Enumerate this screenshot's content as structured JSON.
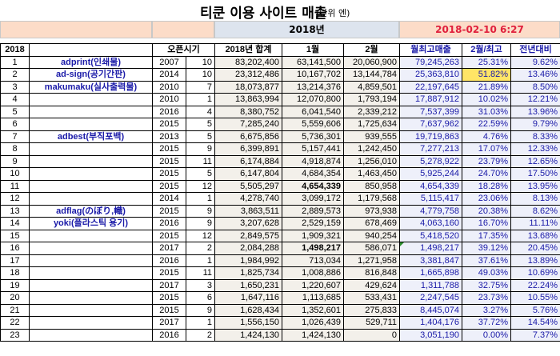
{
  "title": {
    "main": "티쿤 이용 사이트 매출",
    "unit": "(단위 엔)"
  },
  "band": {
    "year": "2018년",
    "date": "2018-02-10 6:27"
  },
  "headers": {
    "index": "2018",
    "site": "",
    "open": "오픈시기",
    "total": "2018년 합계",
    "jan": "1월",
    "feb": "2월",
    "avg": "월최고매출",
    "ratio": "2월/최고",
    "yoy": "전년대비"
  },
  "rows": [
    {
      "no": "1",
      "site": "adprint(인쇄물)",
      "y": "2007",
      "m": "10",
      "total": "83,202,400",
      "jan": "63,141,500",
      "feb": "20,060,900",
      "avg": "79,245,263",
      "ratio": "25.31%",
      "yoy": "9.62%"
    },
    {
      "no": "2",
      "site": "ad-sign(공기간판)",
      "y": "2014",
      "m": "10",
      "total": "23,312,486",
      "jan": "10,167,702",
      "feb": "13,144,784",
      "avg": "25,363,810",
      "ratio": "51.82%",
      "yoy": "13.46%"
    },
    {
      "no": "3",
      "site": "makumaku(실사출력물)",
      "y": "2010",
      "m": "7",
      "total": "18,073,877",
      "jan": "13,214,376",
      "feb": "4,859,501",
      "avg": "22,197,645",
      "ratio": "21.89%",
      "yoy": "8.50%"
    },
    {
      "no": "4",
      "site": "",
      "y": "2010",
      "m": "1",
      "total": "13,863,994",
      "jan": "12,070,800",
      "feb": "1,793,194",
      "avg": "17,887,912",
      "ratio": "10.02%",
      "yoy": "12.21%"
    },
    {
      "no": "5",
      "site": "",
      "y": "2016",
      "m": "4",
      "total": "8,380,752",
      "jan": "6,041,540",
      "feb": "2,339,212",
      "avg": "7,537,399",
      "ratio": "31.03%",
      "yoy": "13.96%"
    },
    {
      "no": "6",
      "site": "",
      "y": "2015",
      "m": "5",
      "total": "7,285,240",
      "jan": "5,559,606",
      "feb": "1,725,634",
      "avg": "7,637,962",
      "ratio": "22.59%",
      "yoy": "9.79%"
    },
    {
      "no": "7",
      "site": "adbest(부직포백)",
      "y": "2013",
      "m": "5",
      "total": "6,675,856",
      "jan": "5,736,301",
      "feb": "939,555",
      "avg": "19,719,863",
      "ratio": "4.76%",
      "yoy": "8.33%"
    },
    {
      "no": "8",
      "site": "",
      "y": "2015",
      "m": "9",
      "total": "6,399,891",
      "jan": "5,157,441",
      "feb": "1,242,450",
      "avg": "7,277,213",
      "ratio": "17.07%",
      "yoy": "12.33%"
    },
    {
      "no": "9",
      "site": "",
      "y": "2015",
      "m": "11",
      "total": "6,174,884",
      "jan": "4,918,874",
      "feb": "1,256,010",
      "avg": "5,278,922",
      "ratio": "23.79%",
      "yoy": "12.65%"
    },
    {
      "no": "10",
      "site": "",
      "y": "2015",
      "m": "5",
      "total": "6,147,804",
      "jan": "4,684,354",
      "feb": "1,463,450",
      "avg": "5,925,244",
      "ratio": "24.70%",
      "yoy": "17.50%"
    },
    {
      "no": "11",
      "site": "",
      "y": "2015",
      "m": "12",
      "total": "5,505,297",
      "jan": "4,654,339",
      "feb": "850,958",
      "avg": "4,654,339",
      "ratio": "18.28%",
      "yoy": "13.95%",
      "janBold": true
    },
    {
      "no": "12",
      "site": "",
      "y": "2014",
      "m": "1",
      "total": "4,278,740",
      "jan": "3,099,172",
      "feb": "1,179,568",
      "avg": "5,115,417",
      "ratio": "23.06%",
      "yoy": "8.13%"
    },
    {
      "no": "13",
      "site": "adflag(のぼり,幟)",
      "y": "2015",
      "m": "9",
      "total": "3,863,511",
      "jan": "2,889,573",
      "feb": "973,938",
      "avg": "4,779,758",
      "ratio": "20.38%",
      "yoy": "8.62%"
    },
    {
      "no": "14",
      "site": "yoki(플라스틱 용기)",
      "y": "2016",
      "m": "9",
      "total": "3,207,628",
      "jan": "2,529,159",
      "feb": "678,469",
      "avg": "4,063,160",
      "ratio": "16.70%",
      "yoy": "11.11%"
    },
    {
      "no": "15",
      "site": "",
      "y": "2015",
      "m": "12",
      "total": "2,849,575",
      "jan": "1,909,321",
      "feb": "940,254",
      "avg": "5,418,520",
      "ratio": "17.35%",
      "yoy": "13.68%"
    },
    {
      "no": "16",
      "site": "",
      "y": "2017",
      "m": "2",
      "total": "2,084,288",
      "jan": "1,498,217",
      "feb": "586,071",
      "avg": "1,498,217",
      "ratio": "39.12%",
      "yoy": "20.45%",
      "janBold": true,
      "avgTri": true
    },
    {
      "no": "17",
      "site": "",
      "y": "2016",
      "m": "1",
      "total": "1,984,992",
      "jan": "713,034",
      "feb": "1,271,958",
      "avg": "3,381,847",
      "ratio": "37.61%",
      "yoy": "13.89%"
    },
    {
      "no": "18",
      "site": "",
      "y": "2015",
      "m": "11",
      "total": "1,825,734",
      "jan": "1,008,886",
      "feb": "816,848",
      "avg": "1,665,898",
      "ratio": "49.03%",
      "yoy": "10.69%"
    },
    {
      "no": "19",
      "site": "",
      "y": "2017",
      "m": "3",
      "total": "1,650,231",
      "jan": "1,220,607",
      "feb": "429,624",
      "avg": "1,311,788",
      "ratio": "32.75%",
      "yoy": "22.24%"
    },
    {
      "no": "20",
      "site": "",
      "y": "2015",
      "m": "6",
      "total": "1,647,116",
      "jan": "1,113,685",
      "feb": "533,431",
      "avg": "2,247,545",
      "ratio": "23.73%",
      "yoy": "10.55%"
    },
    {
      "no": "21",
      "site": "",
      "y": "2015",
      "m": "9",
      "total": "1,628,434",
      "jan": "1,352,601",
      "feb": "275,833",
      "avg": "8,445,074",
      "ratio": "3.27%",
      "yoy": "5.76%"
    },
    {
      "no": "22",
      "site": "",
      "y": "2017",
      "m": "1",
      "total": "1,556,150",
      "jan": "1,026,439",
      "feb": "529,711",
      "avg": "1,404,176",
      "ratio": "37.72%",
      "yoy": "14.54%"
    },
    {
      "no": "23",
      "site": "",
      "y": "2016",
      "m": "2",
      "total": "1,424,130",
      "jan": "1,424,130",
      "feb": "0",
      "avg": "3,051,190",
      "ratio": "0.00%",
      "yoy": "7.37%"
    }
  ],
  "colors": {
    "highlight": "#ffe566",
    "accent_blue": "#1a1aa8",
    "date_red": "#e0203c",
    "band_peach": "#fcdcc8",
    "band_blue": "#dde4ee"
  }
}
